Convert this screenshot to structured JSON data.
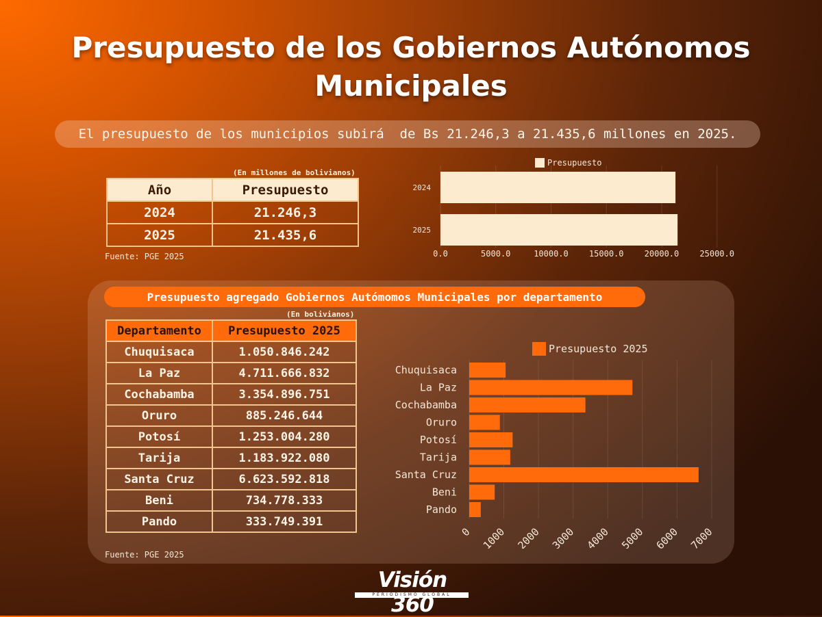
{
  "header": {
    "title_line1": "Presupuesto de los Gobiernos Autónomos",
    "title_line2": "Municipales",
    "subtitle": "El presupuesto de los municipios subirá  de Bs 21.246,3 a 21.435,6 millones en 2025."
  },
  "table1": {
    "note": "(En millones de bolivianos)",
    "headers": [
      "Año",
      "Presupuesto"
    ],
    "rows": [
      [
        "2024",
        "21.246,3"
      ],
      [
        "2025",
        "21.435,6"
      ]
    ],
    "source": "Fuente: PGE 2025"
  },
  "panel": {
    "title": "Presupuesto agregado Gobiernos Autómomos Municipales por departamento"
  },
  "table2": {
    "note": "(En bolivianos)",
    "headers": [
      "Departamento",
      "Presupuesto 2025"
    ],
    "rows": [
      [
        "Chuquisaca",
        "1.050.846.242"
      ],
      [
        "La Paz",
        "4.711.666.832"
      ],
      [
        "Cochabamba",
        "3.354.896.751"
      ],
      [
        "Oruro",
        "885.246.644"
      ],
      [
        "Potosí",
        "1.253.004.280"
      ],
      [
        "Tarija",
        "1.183.922.080"
      ],
      [
        "Santa Cruz",
        "6.623.592.818"
      ],
      [
        "Beni",
        "734.778.333"
      ],
      [
        "Pando",
        "333.749.391"
      ]
    ],
    "source": "Fuente: PGE 2025"
  },
  "chart_data": [
    {
      "type": "bar",
      "orientation": "horizontal",
      "categories": [
        "2024",
        "2025"
      ],
      "series": [
        {
          "name": "Presupuesto",
          "values": [
            21246.3,
            21435.6
          ]
        }
      ],
      "xlim": [
        0,
        27000
      ],
      "xticks": [
        0,
        5000,
        10000,
        15000,
        20000,
        25000
      ],
      "xtick_labels": [
        "0.0",
        "5000.0",
        "10000.0",
        "15000.0",
        "20000.0",
        "25000.0"
      ],
      "legend_position": "top",
      "grid": true,
      "color": "#fdebd0"
    },
    {
      "type": "bar",
      "orientation": "horizontal",
      "categories": [
        "Chuquisaca",
        "La Paz",
        "Cochabamba",
        "Oruro",
        "Potosí",
        "Tarija",
        "Santa Cruz",
        "Beni",
        "Pando"
      ],
      "series": [
        {
          "name": "Presupuesto 2025",
          "values": [
            1050.8,
            4711.7,
            3354.9,
            885.2,
            1253.0,
            1183.9,
            6623.6,
            734.8,
            333.7
          ]
        }
      ],
      "xlim": [
        0,
        7200
      ],
      "xticks": [
        0,
        1000,
        2000,
        3000,
        4000,
        5000,
        6000,
        7000
      ],
      "xtick_labels": [
        "0",
        "1000",
        "2000",
        "3000",
        "4000",
        "5000",
        "6000",
        "7000"
      ],
      "legend_position": "top",
      "grid": true,
      "color": "#ff6a0a"
    }
  ],
  "logo": {
    "name": "Visión 360",
    "tagline": "PERIODISMO GLOBAL"
  }
}
